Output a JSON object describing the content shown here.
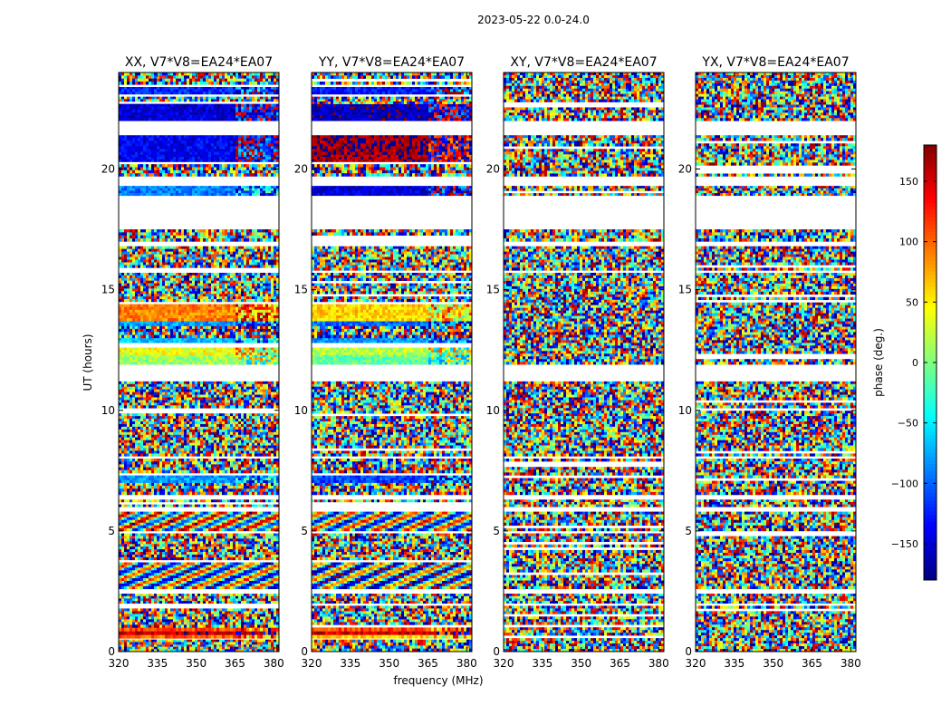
{
  "chart_data": {
    "type": "heatmap",
    "title": "2023-05-22 0.0-24.0",
    "xlabel": "frequency (MHz)",
    "ylabel": "UT (hours)",
    "xlim": [
      320,
      382
    ],
    "ylim": [
      0,
      24
    ],
    "xticks": [
      320,
      335,
      350,
      365,
      380
    ],
    "yticks": [
      0,
      5,
      10,
      15,
      20
    ],
    "panels": [
      {
        "title": "XX, V7*V8=EA24*EA07",
        "bands": [
          {
            "t0": 0.0,
            "t1": 0.3,
            "mode": "noise"
          },
          {
            "t0": 0.3,
            "t1": 0.5,
            "mode": "noise"
          },
          {
            "t0": 0.55,
            "t1": 0.7,
            "mode": "solid",
            "phase": 100
          },
          {
            "t0": 0.7,
            "t1": 0.85,
            "mode": "solid",
            "phase": 160
          },
          {
            "t0": 0.85,
            "t1": 1.0,
            "mode": "solid",
            "phase": 110
          },
          {
            "t0": 1.0,
            "t1": 1.9,
            "mode": "noise"
          },
          {
            "t0": 2.0,
            "t1": 2.4,
            "mode": "noise"
          },
          {
            "t0": 2.6,
            "t1": 3.7,
            "mode": "fringe",
            "phase": -20
          },
          {
            "t0": 3.8,
            "t1": 4.9,
            "mode": "noise"
          },
          {
            "t0": 5.0,
            "t1": 5.8,
            "mode": "fringe",
            "phase": 20
          },
          {
            "t0": 6.0,
            "t1": 6.3,
            "mode": "noise"
          },
          {
            "t0": 6.5,
            "t1": 7.0,
            "mode": "noise"
          },
          {
            "t0": 7.0,
            "t1": 7.3,
            "mode": "solid",
            "phase": -80
          },
          {
            "t0": 7.4,
            "t1": 8.0,
            "mode": "noise"
          },
          {
            "t0": 8.1,
            "t1": 11.2,
            "mode": "noise"
          },
          {
            "t0": 11.9,
            "t1": 12.3,
            "mode": "solid",
            "phase": 10
          },
          {
            "t0": 12.3,
            "t1": 12.6,
            "mode": "solid",
            "phase": 40
          },
          {
            "t0": 12.8,
            "t1": 13.0,
            "mode": "solid",
            "phase": -70
          },
          {
            "t0": 13.0,
            "t1": 13.5,
            "mode": "noise"
          },
          {
            "t0": 13.5,
            "t1": 13.7,
            "mode": "solid",
            "phase": -80
          },
          {
            "t0": 13.7,
            "t1": 14.4,
            "mode": "solid",
            "phase": 90
          },
          {
            "t0": 14.5,
            "t1": 15.7,
            "mode": "noise"
          },
          {
            "t0": 15.8,
            "t1": 16.8,
            "mode": "noise"
          },
          {
            "t0": 17.0,
            "t1": 17.5,
            "mode": "noise"
          },
          {
            "t0": 18.9,
            "t1": 19.3,
            "mode": "solid",
            "phase": -90
          },
          {
            "t0": 19.7,
            "t1": 20.2,
            "mode": "noise"
          },
          {
            "t0": 20.3,
            "t1": 20.6,
            "mode": "solid",
            "phase": -140
          },
          {
            "t0": 20.6,
            "t1": 21.4,
            "mode": "solid",
            "phase": -140
          },
          {
            "t0": 22.0,
            "t1": 22.7,
            "mode": "solid",
            "phase": -150
          },
          {
            "t0": 22.7,
            "t1": 23.0,
            "mode": "noise"
          },
          {
            "t0": 23.1,
            "t1": 23.4,
            "mode": "solid",
            "phase": -120
          },
          {
            "t0": 23.5,
            "t1": 24.0,
            "mode": "noise"
          }
        ]
      },
      {
        "title": "YY, V7*V8=EA24*EA07",
        "bands": [
          {
            "t0": 0.0,
            "t1": 0.5,
            "mode": "noise"
          },
          {
            "t0": 0.55,
            "t1": 0.7,
            "mode": "solid",
            "phase": 60
          },
          {
            "t0": 0.7,
            "t1": 0.85,
            "mode": "solid",
            "phase": 150
          },
          {
            "t0": 0.85,
            "t1": 1.0,
            "mode": "solid",
            "phase": 110
          },
          {
            "t0": 1.0,
            "t1": 1.9,
            "mode": "noise"
          },
          {
            "t0": 2.0,
            "t1": 2.4,
            "mode": "noise"
          },
          {
            "t0": 2.6,
            "t1": 3.7,
            "mode": "fringe",
            "phase": -40
          },
          {
            "t0": 3.8,
            "t1": 4.9,
            "mode": "noise"
          },
          {
            "t0": 5.0,
            "t1": 5.8,
            "mode": "fringe",
            "phase": -10
          },
          {
            "t0": 6.0,
            "t1": 6.3,
            "mode": "noise"
          },
          {
            "t0": 6.5,
            "t1": 7.0,
            "mode": "noise"
          },
          {
            "t0": 7.0,
            "t1": 7.3,
            "mode": "solid",
            "phase": -110
          },
          {
            "t0": 7.4,
            "t1": 8.0,
            "mode": "noise"
          },
          {
            "t0": 8.1,
            "t1": 11.2,
            "mode": "noise"
          },
          {
            "t0": 11.9,
            "t1": 12.3,
            "mode": "solid",
            "phase": -10
          },
          {
            "t0": 12.3,
            "t1": 12.6,
            "mode": "solid",
            "phase": 20
          },
          {
            "t0": 12.8,
            "t1": 13.0,
            "mode": "solid",
            "phase": -80
          },
          {
            "t0": 13.0,
            "t1": 13.5,
            "mode": "noise"
          },
          {
            "t0": 13.5,
            "t1": 13.7,
            "mode": "solid",
            "phase": -100
          },
          {
            "t0": 13.7,
            "t1": 14.4,
            "mode": "solid",
            "phase": 60
          },
          {
            "t0": 14.5,
            "t1": 15.7,
            "mode": "noise"
          },
          {
            "t0": 15.8,
            "t1": 16.8,
            "mode": "noise"
          },
          {
            "t0": 17.0,
            "t1": 17.5,
            "mode": "noise"
          },
          {
            "t0": 18.9,
            "t1": 19.3,
            "mode": "solid",
            "phase": -150
          },
          {
            "t0": 19.7,
            "t1": 20.2,
            "mode": "noise"
          },
          {
            "t0": 20.3,
            "t1": 20.6,
            "mode": "solid",
            "phase": 165
          },
          {
            "t0": 20.6,
            "t1": 21.4,
            "mode": "solid",
            "phase": 170
          },
          {
            "t0": 22.0,
            "t1": 22.7,
            "mode": "solid",
            "phase": -160
          },
          {
            "t0": 22.7,
            "t1": 23.0,
            "mode": "noise"
          },
          {
            "t0": 23.1,
            "t1": 23.4,
            "mode": "solid",
            "phase": -130
          },
          {
            "t0": 23.5,
            "t1": 24.0,
            "mode": "noise"
          }
        ]
      },
      {
        "title": "XY, V7*V8=EA24*EA07",
        "bands": [
          {
            "t0": 0.0,
            "t1": 1.9,
            "mode": "noise"
          },
          {
            "t0": 2.0,
            "t1": 2.4,
            "mode": "noise"
          },
          {
            "t0": 2.6,
            "t1": 4.9,
            "mode": "noise"
          },
          {
            "t0": 5.0,
            "t1": 5.8,
            "mode": "noise"
          },
          {
            "t0": 6.0,
            "t1": 6.3,
            "mode": "noise"
          },
          {
            "t0": 6.5,
            "t1": 8.0,
            "mode": "noise"
          },
          {
            "t0": 8.1,
            "t1": 11.2,
            "mode": "noise"
          },
          {
            "t0": 11.9,
            "t1": 15.7,
            "mode": "noise"
          },
          {
            "t0": 15.8,
            "t1": 16.8,
            "mode": "noise"
          },
          {
            "t0": 17.0,
            "t1": 17.5,
            "mode": "noise"
          },
          {
            "t0": 18.9,
            "t1": 19.3,
            "mode": "noise"
          },
          {
            "t0": 19.7,
            "t1": 21.4,
            "mode": "noise"
          },
          {
            "t0": 22.0,
            "t1": 24.0,
            "mode": "noise"
          }
        ]
      },
      {
        "title": "YX, V7*V8=EA24*EA07",
        "bands": [
          {
            "t0": 0.0,
            "t1": 1.9,
            "mode": "noise"
          },
          {
            "t0": 2.0,
            "t1": 2.4,
            "mode": "noise"
          },
          {
            "t0": 2.6,
            "t1": 4.9,
            "mode": "noise"
          },
          {
            "t0": 5.0,
            "t1": 5.8,
            "mode": "noise"
          },
          {
            "t0": 6.0,
            "t1": 6.3,
            "mode": "noise"
          },
          {
            "t0": 6.5,
            "t1": 8.0,
            "mode": "noise"
          },
          {
            "t0": 8.1,
            "t1": 11.2,
            "mode": "noise"
          },
          {
            "t0": 11.9,
            "t1": 15.7,
            "mode": "noise"
          },
          {
            "t0": 15.8,
            "t1": 16.8,
            "mode": "noise"
          },
          {
            "t0": 17.0,
            "t1": 17.5,
            "mode": "noise"
          },
          {
            "t0": 18.9,
            "t1": 19.3,
            "mode": "noise"
          },
          {
            "t0": 19.7,
            "t1": 21.4,
            "mode": "noise"
          },
          {
            "t0": 22.0,
            "t1": 24.0,
            "mode": "noise"
          }
        ]
      }
    ],
    "colorbar": {
      "label": "phase (deg.)",
      "range": [
        -180,
        180
      ],
      "ticks": [
        150,
        100,
        50,
        0,
        -50,
        -100,
        -150
      ],
      "tick_labels": [
        "150",
        "100",
        "50",
        "0",
        "−50",
        "−100",
        "−150"
      ],
      "colormap": "jet"
    }
  }
}
